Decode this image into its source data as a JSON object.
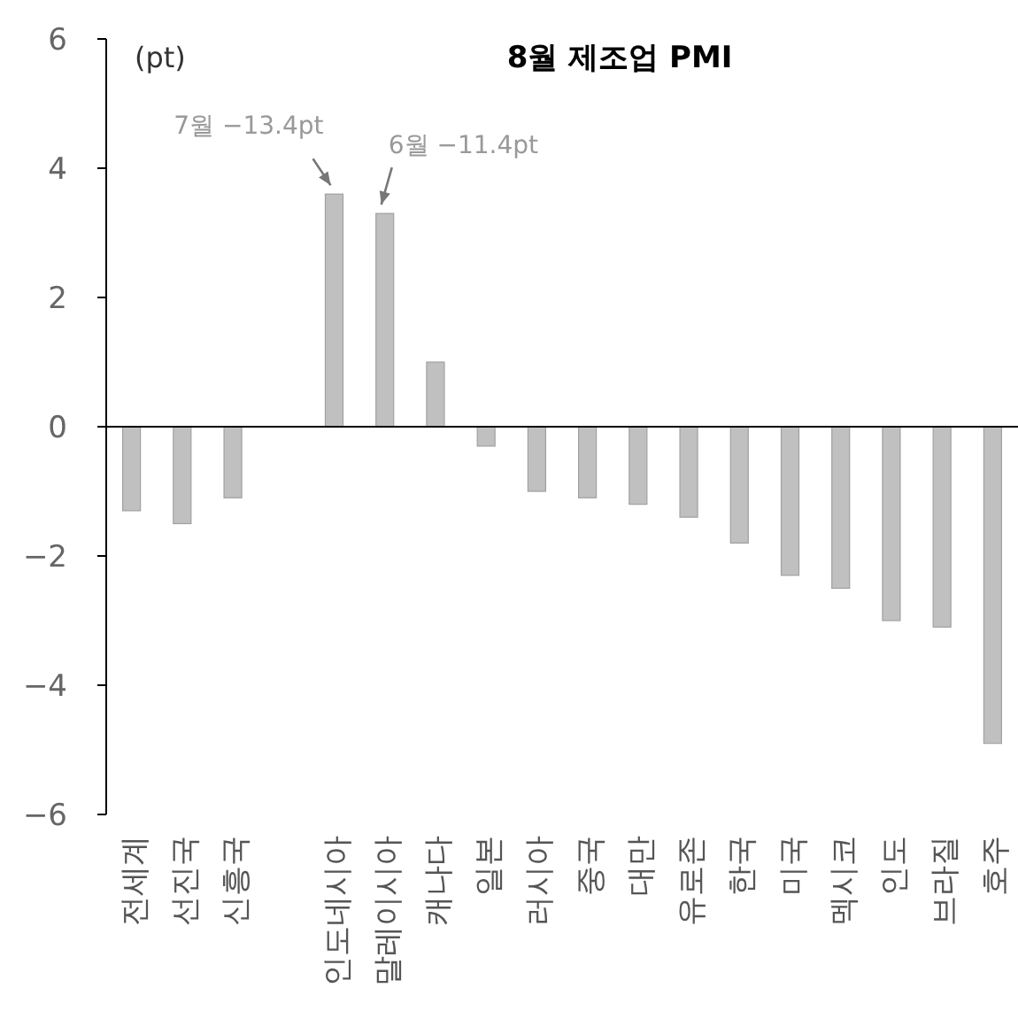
{
  "chart_data": {
    "type": "bar",
    "title": "8월 제조업 PMI",
    "ylabel": "(pt)",
    "categories": [
      "전세계",
      "선진국",
      "신흥국",
      null,
      "인도네시아",
      "말레이시아",
      "캐나다",
      "일본",
      "러시아",
      "중국",
      "대만",
      "유로존",
      "한국",
      "미국",
      "멕시코",
      "인도",
      "브라질",
      "호주"
    ],
    "values": [
      -1.3,
      -1.5,
      -1.1,
      null,
      3.6,
      3.3,
      1.0,
      -0.3,
      -1.0,
      -1.1,
      -1.2,
      -1.4,
      -1.8,
      -2.3,
      -2.5,
      -3.0,
      -3.1,
      -4.9
    ],
    "color": "#c0c0c0",
    "ylim": [
      -6,
      6
    ],
    "yticks": [
      {
        "value": -6,
        "label": "−6"
      },
      {
        "value": -4,
        "label": "−4"
      },
      {
        "value": -2,
        "label": "−2"
      },
      0,
      2,
      4,
      6
    ],
    "annotations": [
      {
        "text": "7월 −13.4pt",
        "x": "인도네시아",
        "y": 3.6
      },
      {
        "text": "6월 −11.4pt",
        "x": "말레이시아",
        "y": 3.3
      }
    ]
  }
}
